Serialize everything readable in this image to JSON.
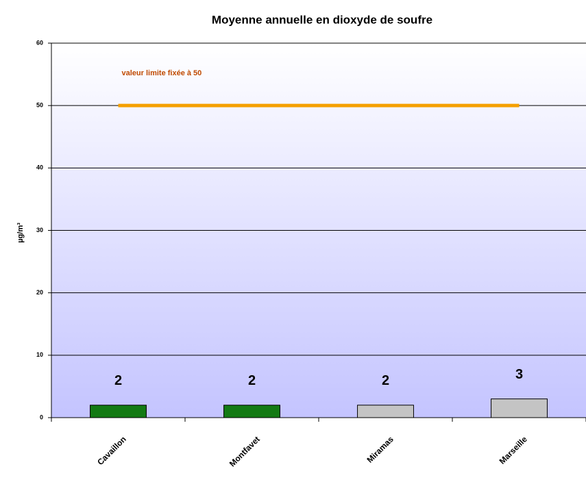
{
  "chart_data": {
    "type": "bar",
    "title": "Moyenne annuelle en dioxyde de soufre",
    "y_label": "µg/m³",
    "categories": [
      "Cavaillon",
      "Montfavet",
      "Miramas",
      "Marseille"
    ],
    "values": [
      2,
      2,
      2,
      3
    ],
    "colors": [
      "#137a13",
      "#137a13",
      "#c4c4c4",
      "#c4c4c4"
    ],
    "ylim": [
      0,
      60
    ],
    "yticks": [
      0,
      10,
      20,
      30,
      40,
      50,
      60
    ],
    "grid": true,
    "reference_line": {
      "value": 50,
      "label": "valeur limite fixée à 50",
      "color": "#f5a000",
      "label_color": "#c04a00"
    }
  }
}
